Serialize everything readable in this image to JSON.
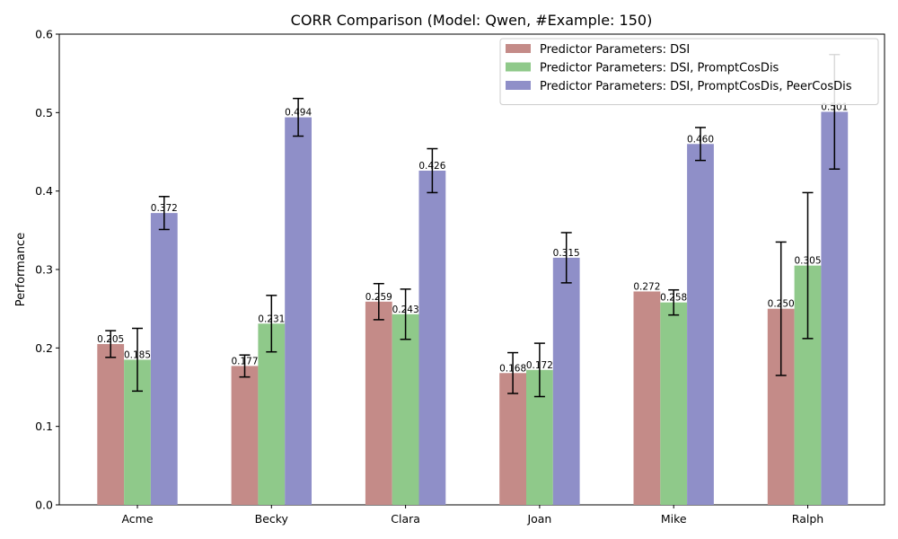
{
  "chart_data": {
    "type": "bar",
    "title": "CORR Comparison (Model: Qwen, #Example: 150)",
    "xlabel": "",
    "ylabel": "Performance",
    "ylim": [
      0,
      0.6
    ],
    "yticks": [
      "0.0",
      "0.1",
      "0.2",
      "0.3",
      "0.4",
      "0.5",
      "0.6"
    ],
    "categories": [
      "Acme",
      "Becky",
      "Clara",
      "Joan",
      "Mike",
      "Ralph"
    ],
    "grid": false,
    "legend_position": "top-right",
    "series": [
      {
        "name": "Predictor Parameters: DSI",
        "color": "#c48b88",
        "values": [
          0.205,
          0.177,
          0.259,
          0.168,
          0.272,
          0.25
        ],
        "labels": [
          "0.205",
          "0.177",
          "0.259",
          "0.168",
          "0.272",
          "0.250"
        ],
        "errors": [
          0.017,
          0.014,
          0.023,
          0.026,
          0.0,
          0.085
        ]
      },
      {
        "name": "Predictor Parameters: DSI, PromptCosDis",
        "color": "#8fc98a",
        "values": [
          0.185,
          0.231,
          0.243,
          0.172,
          0.258,
          0.305
        ],
        "labels": [
          "0.185",
          "0.231",
          "0.243",
          "0.172",
          "0.258",
          "0.305"
        ],
        "errors": [
          0.04,
          0.036,
          0.032,
          0.034,
          0.016,
          0.093
        ]
      },
      {
        "name": "Predictor Parameters: DSI, PromptCosDis, PeerCosDis",
        "color": "#8f8fc8",
        "values": [
          0.372,
          0.494,
          0.426,
          0.315,
          0.46,
          0.501
        ],
        "labels": [
          "0.372",
          "0.494",
          "0.426",
          "0.315",
          "0.460",
          "0.501"
        ],
        "errors": [
          0.021,
          0.024,
          0.028,
          0.032,
          0.021,
          0.073
        ]
      }
    ]
  }
}
